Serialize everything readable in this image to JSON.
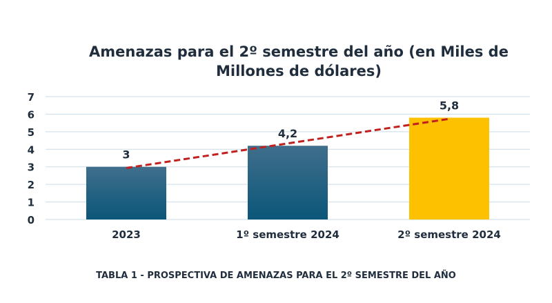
{
  "chart_data": {
    "type": "bar",
    "title_lines": [
      "Amenazas para el 2º semestre del año (en Miles de",
      "Millones de dólares)"
    ],
    "categories": [
      "2023",
      "1º semestre 2024",
      "2º semestre 2024"
    ],
    "values": [
      3,
      4.2,
      5.8
    ],
    "value_labels": [
      "3",
      "4,2",
      "5,8"
    ],
    "ylim": [
      0,
      7
    ],
    "yticks": [
      "0",
      "1",
      "2",
      "3",
      "4",
      "5",
      "6",
      "7"
    ],
    "grid": true,
    "trendline": {
      "style": "dashed",
      "color": "#c0201e"
    },
    "bar_colors": [
      "#135a7e",
      "#135a7e",
      "#fdc100"
    ],
    "grid_color": "#c9dbe9"
  },
  "caption": "TABLA 1 - PROSPECTIVA DE AMENAZAS PARA EL 2º SEMESTRE DEL AÑO"
}
